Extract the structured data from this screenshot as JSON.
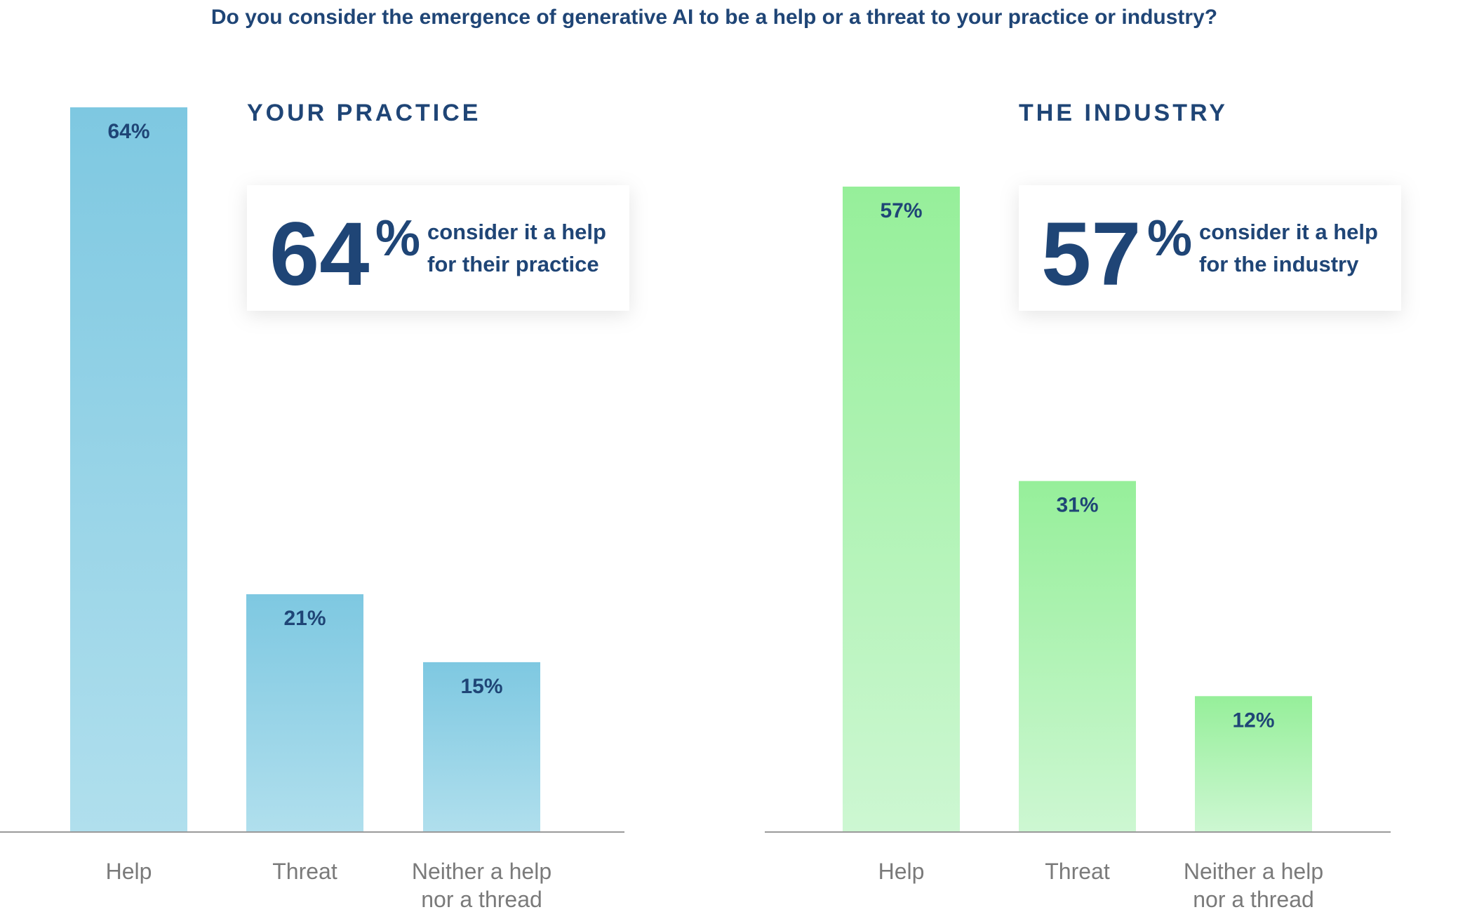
{
  "chart_data": [
    {
      "type": "bar",
      "title": "Do you consider the emergence of generative AI to be a help or a threat to your practice or industry?",
      "panel_title": "YOUR PRACTICE",
      "categories": [
        "Help",
        "Threat",
        "Neither a help nor a thread"
      ],
      "category_lines": [
        [
          "Help"
        ],
        [
          "Threat"
        ],
        [
          "Neither a help",
          "nor a thread"
        ]
      ],
      "values": [
        64,
        21,
        15
      ],
      "value_labels": [
        "64%",
        "21%",
        "15%"
      ],
      "ylim": [
        0,
        64
      ],
      "color_top": "#7ec8e1",
      "color_bottom": "#b0dfed",
      "callout": {
        "number": "64",
        "percent": "%",
        "line1": "consider it a help",
        "line2": "for their practice"
      }
    },
    {
      "type": "bar",
      "panel_title": "THE INDUSTRY",
      "categories": [
        "Help",
        "Threat",
        "Neither a help nor a thread"
      ],
      "category_lines": [
        [
          "Help"
        ],
        [
          "Threat"
        ],
        [
          "Neither a help",
          "nor a thread"
        ]
      ],
      "values": [
        57,
        31,
        12
      ],
      "value_labels": [
        "57%",
        "31%",
        "12%"
      ],
      "ylim": [
        0,
        64
      ],
      "color_top": "#96ef9a",
      "color_bottom": "#cdf7d2",
      "callout": {
        "number": "57",
        "percent": "%",
        "line1": "consider it a help",
        "line2": "for the industry"
      }
    }
  ],
  "colors": {
    "text": "#1f4576",
    "axis": "#9a9a9a",
    "category": "#7a7a7a"
  }
}
